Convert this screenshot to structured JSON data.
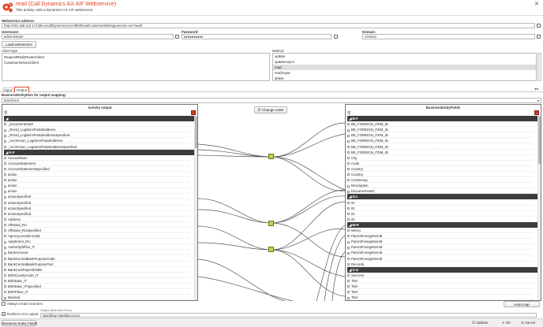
{
  "header": {
    "title": "read (Call Dynamics AX AIF Webservice)",
    "subtitle": "This activity calls a Dynamics AX AIF webservice.",
    "accent": "#e2431e"
  },
  "config": {
    "webservice_label": "Webservice address",
    "webservice_value": "http://192.168.110.171/MicrosoftDynamicsAXAif60/ReadCustomerWeb/xppservice.svc?wsdl",
    "username_label": "Username:",
    "username_value": "administrator",
    "password_label": "Password:",
    "password_value": "●●●●●●●●●●",
    "domain_label": "Domain:",
    "domain_value": "contoso",
    "load_button": "Load webservice",
    "client_type_label": "Client type",
    "client_types": [
      "RequestReplyRouterClient",
      "CustomerServiceClient"
    ],
    "method_label": "Method",
    "methods": [
      "update",
      "updateAsync",
      "read",
      "readAsync",
      "delete"
    ],
    "selected_method": "read"
  },
  "tabs": [
    "Input",
    "Output"
  ],
  "active_tab": "Output",
  "mapping": {
    "item_for_mapping_label": "BusinessEntityItem for output mapping:",
    "item_for_mapping_value": "MoreRoot",
    "left_title": "Activity output",
    "right_title": "BusinessEntityFields",
    "change_order_button": "Change order",
    "left_groups": [
      {
        "header": "◢ _",
        "items": [
          "_DocumentHash",
          "_RecId_LogisticsPostalAddress",
          "_RecId_LogisticsPostalAddressSpecified",
          "_recVersion_LogisticsPostalAddress",
          "_recVersion_LogisticsPostalAddressSpecified"
        ]
      },
      {
        "header": "◢ A-F",
        "items": [
          "AccountNum",
          "AccountStatement",
          "AccountStatementSpecified",
          "action",
          "action",
          "action",
          "action",
          "actionSpecified",
          "actionSpecified",
          "actionSpecified",
          "actionSpecified",
          "Address",
          "AfRated_RU",
          "AfRated_RUSpecified",
          "AgencyLocationCode",
          "Apartment_RU",
          "AuthorityOffice_IT",
          "BankAccount",
          "BankCentralBankPurposeCode",
          "BankCentralBankPurposeText",
          "BankCustPaymIdTable",
          "BirthCountyCode_IT",
          "BirthDate_IT",
          "BirthDate_ITSpecified",
          "BirthPlace_IT",
          "Blocked"
        ]
      }
    ],
    "right_groups": [
      {
        "header": "◢ B-F",
        "items": [
          "BE_FOREIGN_ITEM_ID",
          "BE_FOREIGN_ITEM_ID",
          "BE_FOREIGN_ITEM_ID",
          "BE_FOREIGN_ITEM_ID",
          "BE_FOREIGN_ITEM_ID",
          "BE_FOREIGN_ITEM_ID",
          "City",
          "Code",
          "Country",
          "Country",
          "CustGroup",
          "Description",
          "DocumentHash"
        ]
      },
      {
        "header": "◢ G-L",
        "items": [
          "ID",
          "ID",
          "ID",
          "ID"
        ]
      },
      {
        "header": "◢ M-R",
        "items": [
          "Memo",
          "ParentForeignItemId",
          "ParentForeignItemId",
          "ParentForeignItemId",
          "ParentForeignItemId",
          "ParentForeignItemId",
          "Records"
        ]
      },
      {
        "header": "◢ S-U",
        "items": [
          "Success",
          "Titel",
          "Titel",
          "Titel",
          "Titel"
        ]
      }
    ],
    "always_create_label": "Always create new item",
    "auto_map_button": "Auto-map",
    "redirect_error_label": "Redirect error output",
    "output_standard_label": "Output (Standard Error)",
    "output_standard_value": "Workflow-Variablen.error"
  },
  "footer": {
    "business_entity_fields_button": "Business Entity Fields",
    "validate_button": "Validate",
    "ok_button": "OK",
    "cancel_button": "Cancel"
  }
}
